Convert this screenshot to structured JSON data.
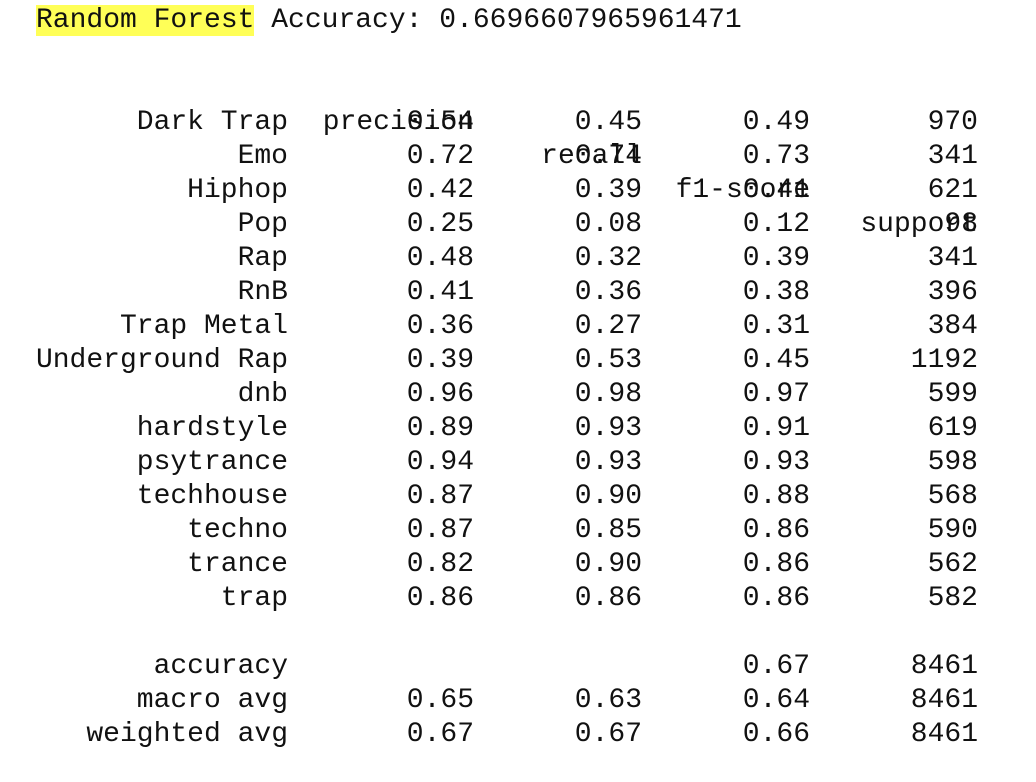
{
  "title": {
    "model_name": "Random Forest",
    "accuracy_text": " Accuracy: 0.6696607965961471"
  },
  "header": {
    "precision": "precision",
    "recall": "recall",
    "f1": "f1-score",
    "support": "support"
  },
  "rows": [
    {
      "label": "Dark Trap",
      "precision": "0.54",
      "recall": "0.45",
      "f1": "0.49",
      "support": "970"
    },
    {
      "label": "Emo",
      "precision": "0.72",
      "recall": "0.74",
      "f1": "0.73",
      "support": "341"
    },
    {
      "label": "Hiphop",
      "precision": "0.42",
      "recall": "0.39",
      "f1": "0.41",
      "support": "621"
    },
    {
      "label": "Pop",
      "precision": "0.25",
      "recall": "0.08",
      "f1": "0.12",
      "support": "98"
    },
    {
      "label": "Rap",
      "precision": "0.48",
      "recall": "0.32",
      "f1": "0.39",
      "support": "341"
    },
    {
      "label": "RnB",
      "precision": "0.41",
      "recall": "0.36",
      "f1": "0.38",
      "support": "396"
    },
    {
      "label": "Trap Metal",
      "precision": "0.36",
      "recall": "0.27",
      "f1": "0.31",
      "support": "384"
    },
    {
      "label": "Underground Rap",
      "precision": "0.39",
      "recall": "0.53",
      "f1": "0.45",
      "support": "1192"
    },
    {
      "label": "dnb",
      "precision": "0.96",
      "recall": "0.98",
      "f1": "0.97",
      "support": "599"
    },
    {
      "label": "hardstyle",
      "precision": "0.89",
      "recall": "0.93",
      "f1": "0.91",
      "support": "619"
    },
    {
      "label": "psytrance",
      "precision": "0.94",
      "recall": "0.93",
      "f1": "0.93",
      "support": "598"
    },
    {
      "label": "techhouse",
      "precision": "0.87",
      "recall": "0.90",
      "f1": "0.88",
      "support": "568"
    },
    {
      "label": "techno",
      "precision": "0.87",
      "recall": "0.85",
      "f1": "0.86",
      "support": "590"
    },
    {
      "label": "trance",
      "precision": "0.82",
      "recall": "0.90",
      "f1": "0.86",
      "support": "562"
    },
    {
      "label": "trap",
      "precision": "0.86",
      "recall": "0.86",
      "f1": "0.86",
      "support": "582"
    }
  ],
  "summary": [
    {
      "label": "accuracy",
      "precision": "",
      "recall": "",
      "f1": "0.67",
      "support": "8461"
    },
    {
      "label": "macro avg",
      "precision": "0.65",
      "recall": "0.63",
      "f1": "0.64",
      "support": "8461"
    },
    {
      "label": "weighted avg",
      "precision": "0.67",
      "recall": "0.67",
      "f1": "0.66",
      "support": "8461"
    }
  ],
  "colors": {
    "highlight": "#ffff57",
    "text": "#111111",
    "background": "#ffffff"
  }
}
